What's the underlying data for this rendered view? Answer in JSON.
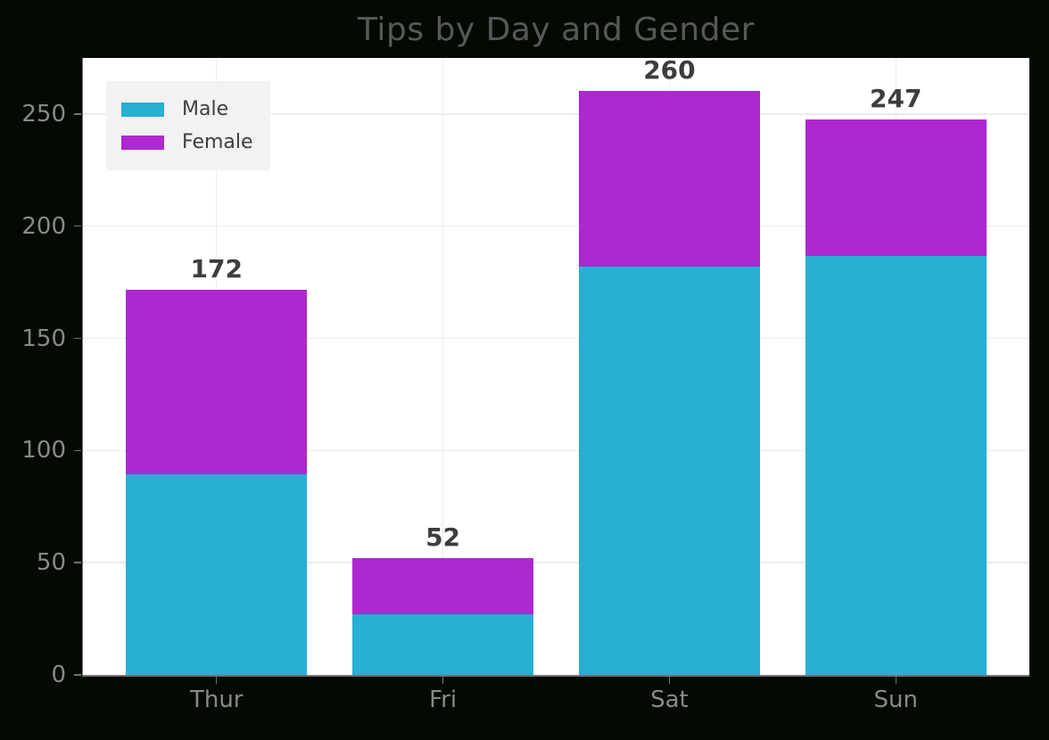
{
  "figure": {
    "background": "#020a02",
    "plot_background": "#ffffff",
    "grid_color": "#ececec",
    "spine_color": "#737373",
    "tick_color": "#737373",
    "tick_label_color": "#898989",
    "title_color": "#585858",
    "bar_label_color": "#3d3d3d",
    "legend_background": "#f2f2f2",
    "legend_text_color": "#3e3e3e"
  },
  "chart_data": {
    "type": "bar",
    "stacked": true,
    "title": "Tips by Day and Gender",
    "categories": [
      "Thur",
      "Fri",
      "Sat",
      "Sun"
    ],
    "series": [
      {
        "name": "Male",
        "color": "#27afd4",
        "values": [
          89.4,
          26.9,
          182.0,
          186.8
        ]
      },
      {
        "name": "Female",
        "color": "#ad28d0",
        "values": [
          82.4,
          25.0,
          78.4,
          60.6
        ]
      }
    ],
    "bar_total_labels": [
      "172",
      "52",
      "260",
      "247"
    ],
    "xlabel": "",
    "ylabel": "",
    "yticks": [
      0,
      50,
      100,
      150,
      200,
      250
    ],
    "ylim": [
      0,
      275
    ],
    "grid": true,
    "legend_position": "upper left"
  }
}
